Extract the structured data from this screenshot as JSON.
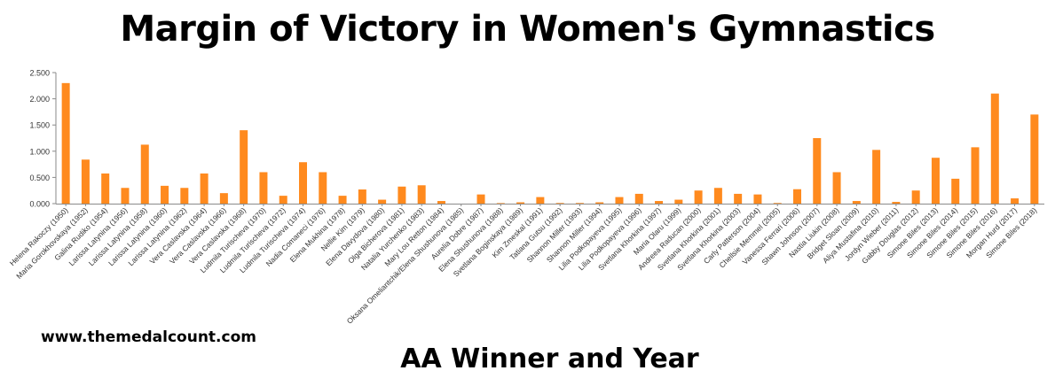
{
  "chart_data": {
    "type": "bar",
    "title": "Margin of Victory in Women's Gymnastics",
    "xlabel": "AA Winner and Year",
    "ylabel": "",
    "ylim": [
      0,
      2.5
    ],
    "yticks": [
      "0.000",
      "0.500",
      "1.000",
      "1.500",
      "2.000",
      "2.500"
    ],
    "ytick_values": [
      0,
      0.5,
      1,
      1.5,
      2,
      2.5
    ],
    "grid": false,
    "bar_color": "#ff8a1e",
    "categories": [
      "Helena Rakoczy (1950)",
      "Maria Gorokhovskaya (1952)",
      "Galina Rudiko (1954)",
      "Larissa Latynina (1956)",
      "Larissa Latynina (1958)",
      "Larissa Latynina (1960)",
      "Larissa Latynina (1962)",
      "Vera Caslavska (1964)",
      "Vera Caslavska (1966)",
      "Vera Caslavska (1968)",
      "Ludmila Turischeva (1970)",
      "Ludmila Turischeva (1972)",
      "Ludmila Turischeva (1974)",
      "Nadia Comaneci (1976)",
      "Elena Mukhina (1978)",
      "Nellie Kim (1979)",
      "Elena Davydova (1980)",
      "Olga Bicherova (1981)",
      "Natalia Yurchenko (1983)",
      "Mary Lou Retton (1984)",
      "Oksana Omeliantchik/Elena Shushunova (1985)",
      "Aurelia Dobre (1987)",
      "Elena Shushunova (1988)",
      "Svetlana Boginskaya (1989)",
      "Kim Zmeskal (1991)",
      "Tatiana Gutsu (1992)",
      "Shannon Miller (1993)",
      "Shannon Miller (1994)",
      "Lilia Podkopayeva (1995)",
      "Lilia Podkopayeva (1996)",
      "Svetlana Khorkina (1997)",
      "Maria Olaru (1999)",
      "Andreea Raducan (2000)",
      "Svetlana Khorkina (2001)",
      "Svetlana Khorkina (2003)",
      "Carly Patterson (2004)",
      "Chellsie Memmel (2005)",
      "Vanessa Ferrari (2006)",
      "Shawn Johnson (2007)",
      "Nastia Liukin (2008)",
      "Bridget Sloan (2009)",
      "Aliya Mustafina (2010)",
      "Jordyn Wieber (2011)",
      "Gabby Douglas (2012)",
      "Simone Biles (2013)",
      "Simone Biles (2014)",
      "Simone Biles (2015)",
      "Simone Biles (2016)",
      "Morgan Hurd (2017)",
      "Simone Biles (2018)"
    ],
    "values": [
      2.3,
      0.84,
      0.575,
      0.3,
      1.125,
      0.34,
      0.3,
      0.575,
      0.2,
      1.4,
      0.6,
      0.15,
      0.79,
      0.6,
      0.15,
      0.27,
      0.075,
      0.325,
      0.35,
      0.05,
      0.0,
      0.175,
      0.01,
      0.025,
      0.125,
      0.012,
      0.012,
      0.025,
      0.125,
      0.187,
      0.05,
      0.075,
      0.25,
      0.3,
      0.187,
      0.175,
      0.012,
      0.275,
      1.25,
      0.6,
      0.05,
      1.025,
      0.033,
      0.25,
      0.875,
      0.475,
      1.075,
      2.1,
      0.1,
      1.7
    ]
  },
  "watermark": "www.themedalcount.com"
}
